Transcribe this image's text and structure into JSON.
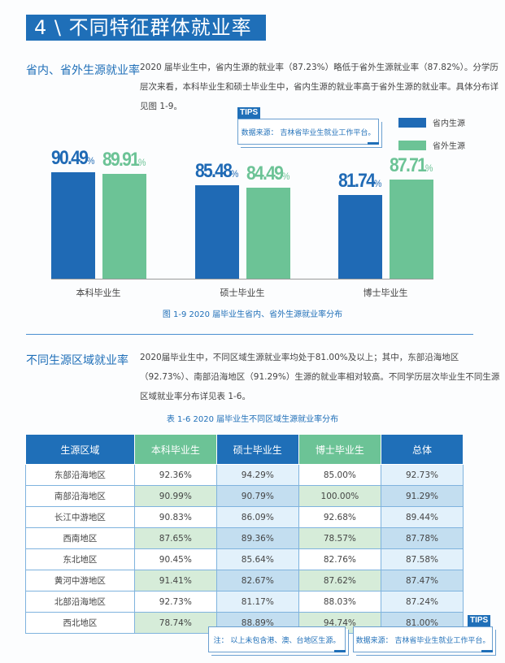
{
  "header": {
    "title": "4 \\ 不同特征群体就业率"
  },
  "section1": {
    "label": "省内、省外生源就业率",
    "paragraph": "2020  届毕业生中，省内生源的就业率（87.23%）略低于省外生源就业率（87.82%）。分学历层次来看，本科毕业生和硕士毕业生中，省内生源的就业率高于省外生源的就业率。具体分布详见图 1-9。",
    "tips_tag": "TIPS",
    "tips_text": "数据来源：  吉林省毕业生就业工作平台。",
    "caption": "图 1-9  2020 届毕业生省内、省外生源就业率分布"
  },
  "chart_data": {
    "type": "bar",
    "categories": [
      "本科毕业生",
      "硕士毕业生",
      "博士毕业生"
    ],
    "series": [
      {
        "name": "省内生源",
        "values": [
          90.49,
          85.48,
          81.74
        ],
        "color": "#1f6ab5"
      },
      {
        "name": "省外生源",
        "values": [
          89.91,
          84.49,
          87.71
        ],
        "color": "#6cc396"
      }
    ],
    "unit": "%",
    "legend": "top-right"
  },
  "section2": {
    "label": "不同生源区域就业率",
    "paragraph": "2020届毕业生中，不同区域生源就业率均处于81.00%及以上；其中，东部沿海地区（92.73%）、南部沿海地区（91.29%）生源的就业率相对较高。不同学历层次毕业生不同生源区域就业率分布详见表 1-6。",
    "table_caption": "表 1-6  2020 届毕业生不同区域生源就业率分布",
    "table": {
      "headers": [
        "生源区域",
        "本科毕业生",
        "硕士毕业生",
        "博士毕业生",
        "总体"
      ],
      "rows": [
        [
          "东部沿海地区",
          "92.36%",
          "94.29%",
          "85.00%",
          "92.73%"
        ],
        [
          "南部沿海地区",
          "90.99%",
          "90.79%",
          "100.00%",
          "91.29%"
        ],
        [
          "长江中游地区",
          "90.83%",
          "86.09%",
          "92.68%",
          "89.44%"
        ],
        [
          "西南地区",
          "87.65%",
          "89.36%",
          "78.57%",
          "87.78%"
        ],
        [
          "东北地区",
          "90.45%",
          "85.64%",
          "82.76%",
          "87.58%"
        ],
        [
          "黄河中游地区",
          "91.41%",
          "82.67%",
          "87.62%",
          "87.47%"
        ],
        [
          "北部沿海地区",
          "92.73%",
          "81.17%",
          "88.03%",
          "87.24%"
        ],
        [
          "西北地区",
          "78.74%",
          "88.89%",
          "94.74%",
          "81.00%"
        ]
      ]
    },
    "tips_tag": "TIPS",
    "note": "注：  以上未包含港、澳、台地区生源。",
    "source": "数据来源：  吉林省毕业生就业工作平台。"
  },
  "colors": {
    "brand_blue": "#1f6fb8",
    "green": "#6cc396",
    "header_green": "#6cc396",
    "cell_green": "#d6ecd9",
    "cell_blue": "#c3def0",
    "cell_lightblue": "#e2f1fb"
  }
}
